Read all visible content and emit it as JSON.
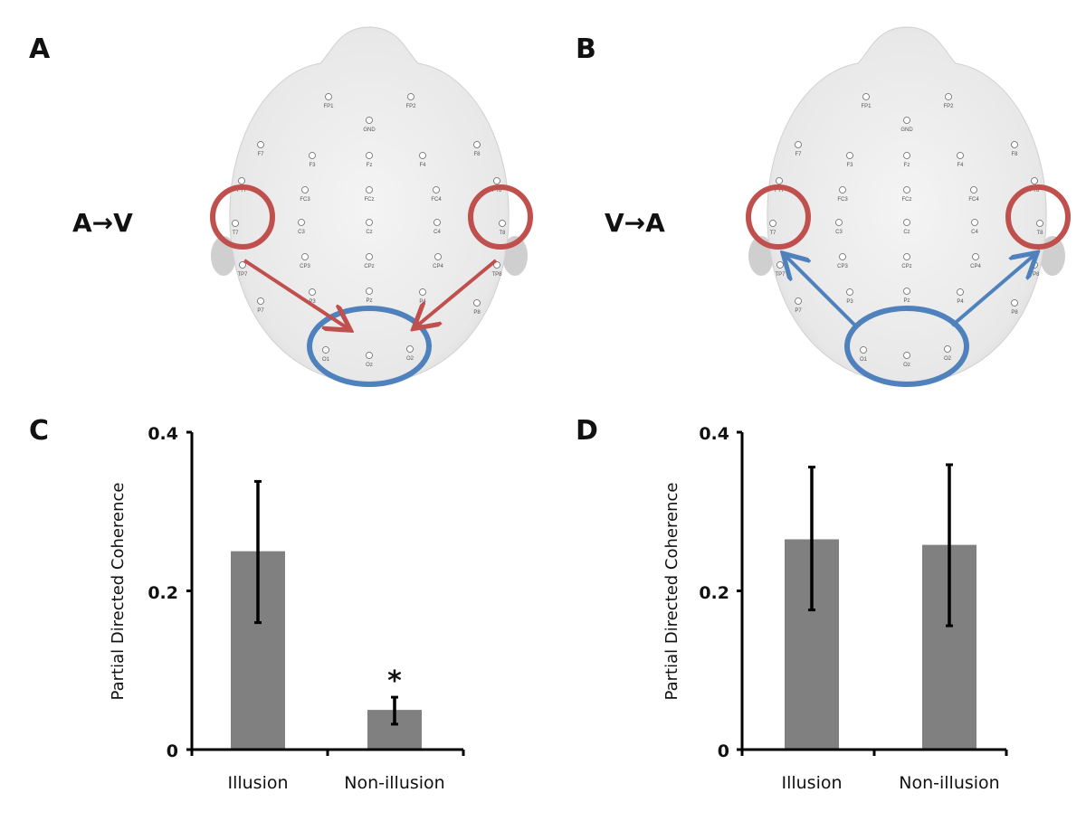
{
  "panels": {
    "A": {
      "letter": "A",
      "direction_label": "A→V",
      "source_ring_color": "#c0504d",
      "target_ring_color": "#4f81bd",
      "arrow_color": "#c0504d"
    },
    "B": {
      "letter": "B",
      "direction_label": "V→A",
      "source_ring_color": "#4f81bd",
      "target_ring_color": "#c0504d",
      "arrow_color": "#4f81bd"
    },
    "C": {
      "letter": "C"
    },
    "D": {
      "letter": "D"
    }
  },
  "electrodes": [
    "FP1",
    "FP2",
    "GND",
    "F7",
    "F3",
    "Fz",
    "F4",
    "F8",
    "FT7",
    "FC3",
    "FCz",
    "FC4",
    "FT8",
    "T7",
    "C3",
    "Cz",
    "C4",
    "T8",
    "TP7",
    "CP3",
    "CPz",
    "CP4",
    "TP8",
    "P7",
    "P3",
    "Pz",
    "P4",
    "P8",
    "O1",
    "Oz",
    "O2"
  ],
  "chart_data": [
    {
      "type": "bar",
      "panel": "C",
      "categories": [
        "Illusion",
        "Non-illusion"
      ],
      "values": [
        0.25,
        0.05
      ],
      "error_low": [
        0.16,
        0.032
      ],
      "error_high": [
        0.338,
        0.066
      ],
      "annotations": [
        "",
        "*"
      ],
      "ylabel": "Partial Directed Coherence",
      "xlabel": "",
      "ylim": [
        0,
        0.4
      ],
      "yticks": [
        "0",
        "0.2",
        "0.4"
      ],
      "grid": false,
      "bar_color": "#808080"
    },
    {
      "type": "bar",
      "panel": "D",
      "categories": [
        "Illusion",
        "Non-illusion"
      ],
      "values": [
        0.265,
        0.258
      ],
      "error_low": [
        0.176,
        0.156
      ],
      "error_high": [
        0.356,
        0.359
      ],
      "annotations": [
        "",
        ""
      ],
      "ylabel": "Partial Directed Coherence",
      "xlabel": "",
      "ylim": [
        0,
        0.4
      ],
      "yticks": [
        "0",
        "0.2",
        "0.4"
      ],
      "grid": false,
      "bar_color": "#808080"
    }
  ]
}
